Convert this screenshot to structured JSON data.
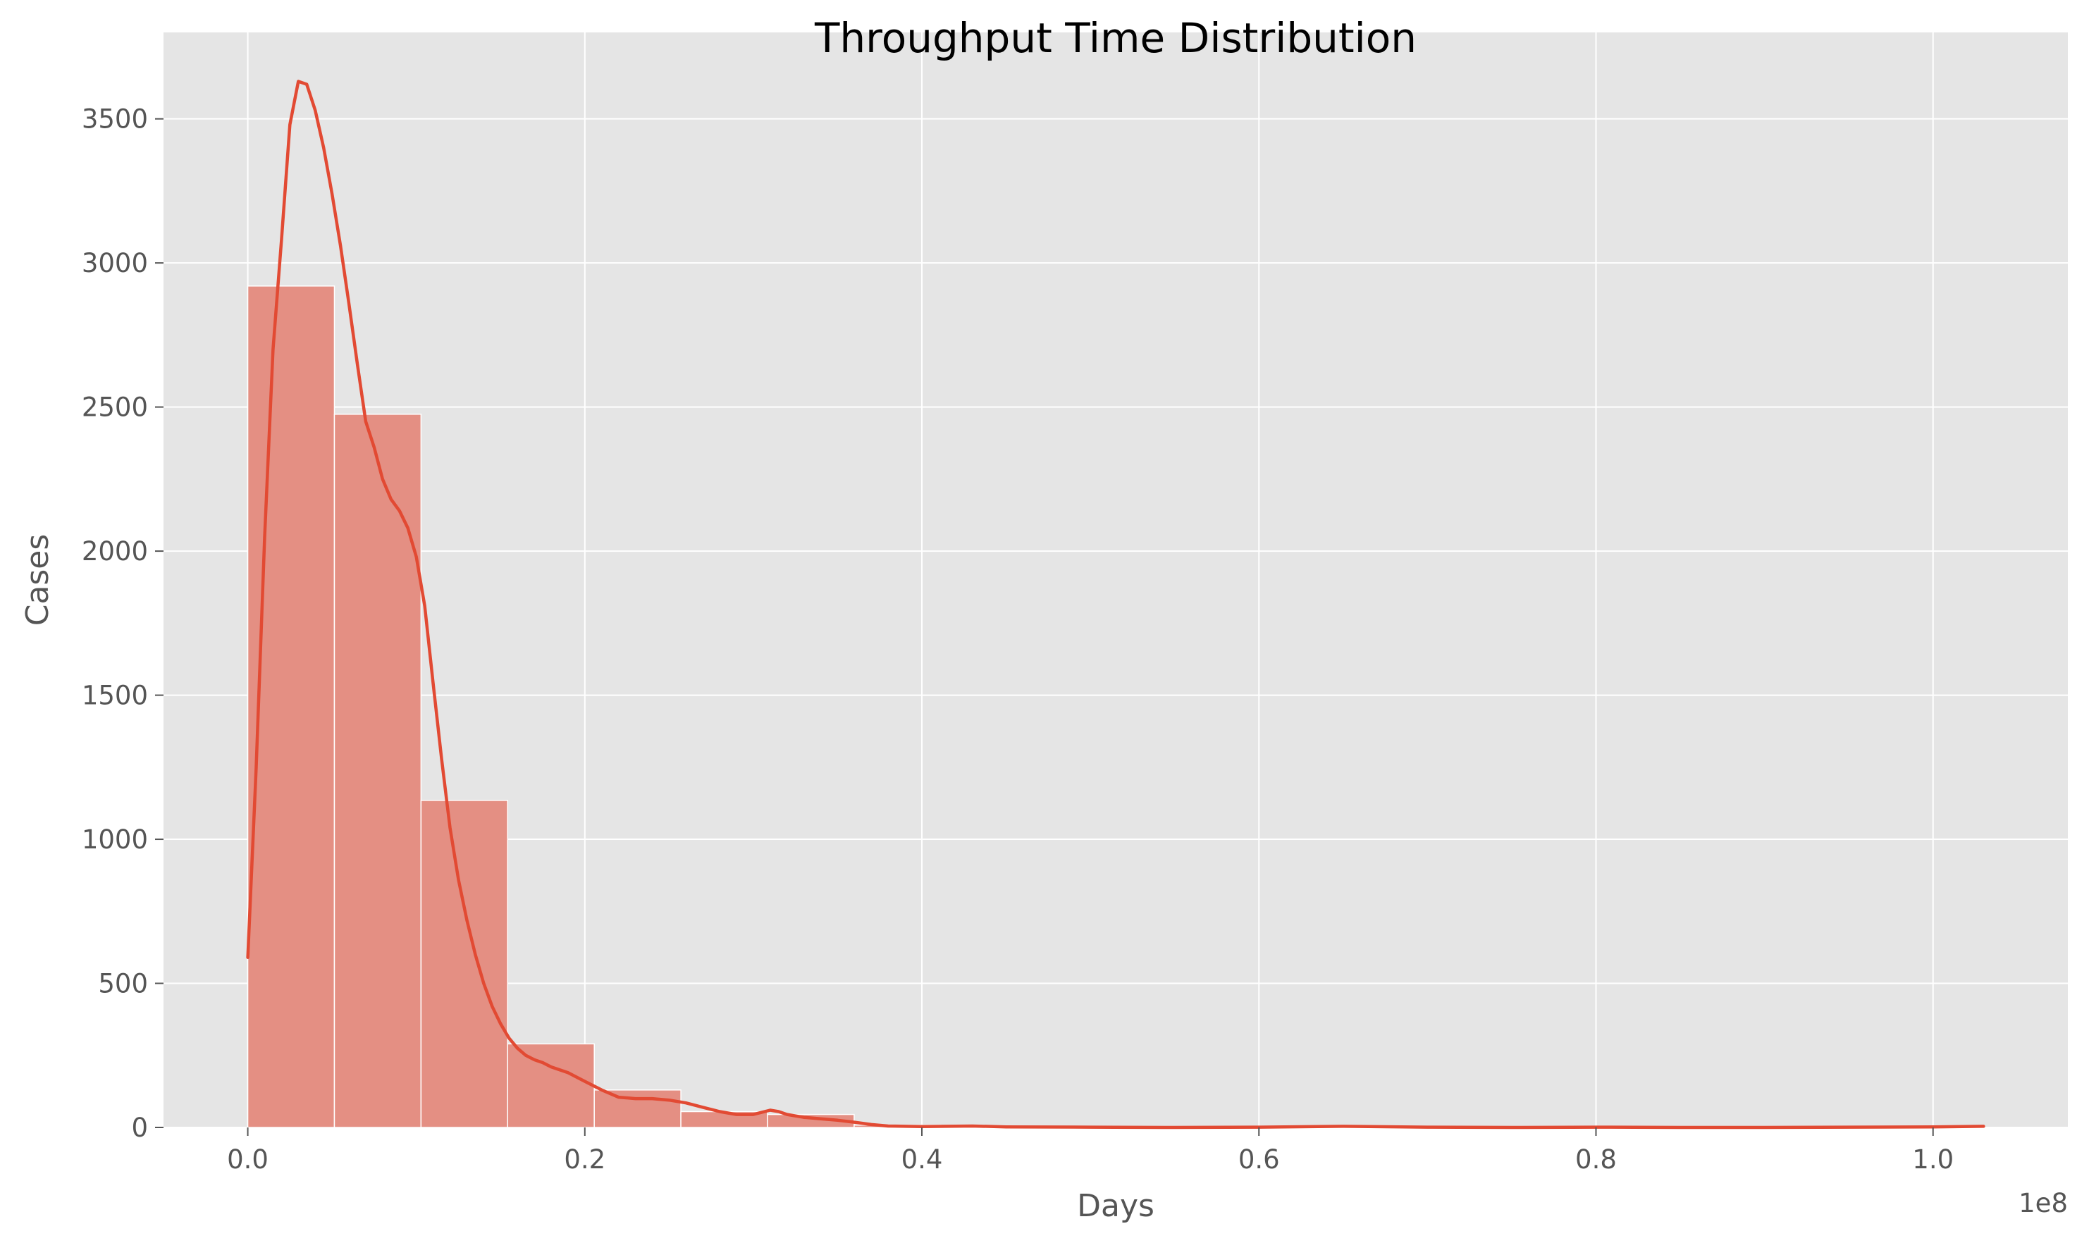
{
  "chart_data": {
    "type": "bar",
    "title": "Throughput Time Distribution",
    "xlabel": "Days",
    "ylabel": "Cases",
    "x_offset_label": "1e8",
    "xlim": [
      -0.05,
      1.08
    ],
    "ylim": [
      0,
      3800
    ],
    "x_ticks": [
      0.0,
      0.2,
      0.4,
      0.6,
      0.8,
      1.0
    ],
    "x_tick_labels": [
      "0.0",
      "0.2",
      "0.4",
      "0.6",
      "0.8",
      "1.0"
    ],
    "y_ticks": [
      0,
      500,
      1000,
      1500,
      2000,
      2500,
      3000,
      3500
    ],
    "y_tick_labels": [
      "0",
      "500",
      "1000",
      "1500",
      "2000",
      "2500",
      "3000",
      "3500"
    ],
    "grid": true,
    "bin_width": 0.0514,
    "bins_start": 0.0,
    "bar_values": [
      2920,
      2475,
      1135,
      290,
      130,
      55,
      45,
      8,
      3,
      2,
      2,
      1,
      1,
      2,
      1,
      1,
      1,
      1,
      1,
      1
    ],
    "bar_color": "#e48f83",
    "line_color": "#e24a33",
    "kde": {
      "x": [
        0.0,
        0.005,
        0.01,
        0.015,
        0.02,
        0.025,
        0.03,
        0.035,
        0.04,
        0.045,
        0.05,
        0.055,
        0.06,
        0.065,
        0.07,
        0.075,
        0.08,
        0.085,
        0.09,
        0.095,
        0.1,
        0.105,
        0.11,
        0.115,
        0.12,
        0.125,
        0.13,
        0.135,
        0.14,
        0.145,
        0.15,
        0.155,
        0.16,
        0.165,
        0.17,
        0.175,
        0.18,
        0.19,
        0.2,
        0.21,
        0.22,
        0.23,
        0.24,
        0.25,
        0.26,
        0.27,
        0.28,
        0.29,
        0.3,
        0.31,
        0.315,
        0.32,
        0.33,
        0.34,
        0.35,
        0.36,
        0.37,
        0.38,
        0.4,
        0.43,
        0.45,
        0.5,
        0.55,
        0.6,
        0.65,
        0.7,
        0.75,
        0.8,
        0.85,
        0.9,
        0.95,
        1.0,
        1.03
      ],
      "y": [
        590,
        1250,
        2050,
        2700,
        3080,
        3480,
        3630,
        3620,
        3530,
        3400,
        3240,
        3060,
        2860,
        2650,
        2450,
        2360,
        2250,
        2180,
        2140,
        2080,
        1980,
        1810,
        1540,
        1280,
        1040,
        860,
        720,
        600,
        500,
        420,
        360,
        310,
        275,
        250,
        235,
        225,
        210,
        190,
        160,
        130,
        105,
        100,
        100,
        95,
        85,
        70,
        55,
        45,
        45,
        60,
        55,
        45,
        35,
        30,
        25,
        18,
        10,
        5,
        3,
        5,
        2,
        1,
        0,
        1,
        4,
        1,
        0,
        1,
        0,
        0,
        1,
        2,
        4
      ]
    }
  }
}
